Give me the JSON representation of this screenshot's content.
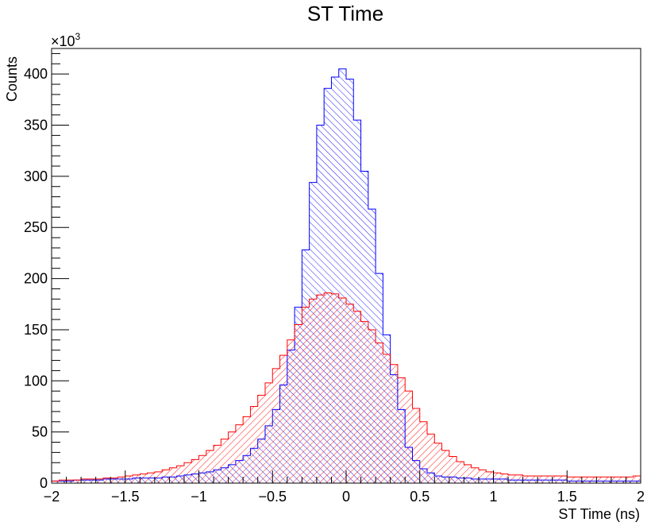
{
  "chart_data": {
    "type": "histogram",
    "title": "ST Time",
    "xlabel": "ST Time (ns)",
    "ylabel": "Counts",
    "y_multiplier_label": "×10",
    "y_multiplier_exponent": "3",
    "xlim": [
      -2,
      2
    ],
    "ylim": [
      0,
      425
    ],
    "x_ticks": [
      -2,
      -1.5,
      -1,
      -0.5,
      0,
      0.5,
      1,
      1.5,
      2
    ],
    "x_tick_labels": [
      "−2",
      "−1.5",
      "−1",
      "−0.5",
      "0",
      "0.5",
      "1",
      "1.5",
      "2"
    ],
    "y_ticks": [
      0,
      50,
      100,
      150,
      200,
      250,
      300,
      350,
      400
    ],
    "y_tick_labels": [
      "0",
      "50",
      "100",
      "150",
      "200",
      "250",
      "300",
      "350",
      "400"
    ],
    "grid": false,
    "bin_width": 0.05,
    "x": [
      -1.975,
      -1.925,
      -1.875,
      -1.825,
      -1.775,
      -1.725,
      -1.675,
      -1.625,
      -1.575,
      -1.525,
      -1.475,
      -1.425,
      -1.375,
      -1.325,
      -1.275,
      -1.225,
      -1.175,
      -1.125,
      -1.075,
      -1.025,
      -0.975,
      -0.925,
      -0.875,
      -0.825,
      -0.775,
      -0.725,
      -0.675,
      -0.625,
      -0.575,
      -0.525,
      -0.475,
      -0.425,
      -0.375,
      -0.325,
      -0.275,
      -0.225,
      -0.175,
      -0.125,
      -0.075,
      -0.025,
      0.025,
      0.075,
      0.125,
      0.175,
      0.225,
      0.275,
      0.325,
      0.375,
      0.425,
      0.475,
      0.525,
      0.575,
      0.625,
      0.675,
      0.725,
      0.775,
      0.825,
      0.875,
      0.925,
      0.975,
      1.025,
      1.075,
      1.125,
      1.175,
      1.225,
      1.275,
      1.325,
      1.375,
      1.425,
      1.475,
      1.525,
      1.575,
      1.625,
      1.675,
      1.725,
      1.775,
      1.825,
      1.875,
      1.925,
      1.975
    ],
    "series": [
      {
        "color": "#0000ff",
        "hatch": "backslash",
        "values": [
          2,
          2,
          2,
          3,
          3,
          3,
          3,
          4,
          4,
          4,
          4,
          5,
          5,
          5,
          5,
          6,
          6,
          7,
          8,
          9,
          10,
          11,
          13,
          15,
          18,
          22,
          27,
          34,
          43,
          56,
          72,
          96,
          130,
          172,
          228,
          294,
          350,
          386,
          397,
          405,
          395,
          355,
          305,
          268,
          205,
          145,
          106,
          72,
          35,
          22,
          14,
          10,
          7,
          6,
          6,
          5,
          5,
          4,
          4,
          4,
          4,
          4,
          3,
          3,
          3,
          3,
          3,
          3,
          3,
          3,
          2,
          2,
          2,
          2,
          2,
          2,
          2,
          2,
          2,
          2
        ]
      },
      {
        "color": "#ff0000",
        "hatch": "slash",
        "values": [
          2,
          3,
          3,
          3,
          4,
          4,
          4,
          5,
          5,
          6,
          7,
          8,
          9,
          10,
          11,
          13,
          15,
          17,
          20,
          23,
          27,
          32,
          37,
          43,
          50,
          57,
          65,
          75,
          86,
          98,
          112,
          125,
          140,
          155,
          172,
          180,
          184,
          186,
          185,
          181,
          175,
          168,
          158,
          150,
          137,
          126,
          116,
          103,
          90,
          73,
          60,
          48,
          39,
          32,
          26,
          21,
          18,
          15,
          13,
          11,
          10,
          9,
          8,
          8,
          7,
          7,
          7,
          7,
          7,
          7,
          6,
          6,
          6,
          6,
          6,
          6,
          6,
          6,
          6,
          7
        ]
      }
    ]
  }
}
